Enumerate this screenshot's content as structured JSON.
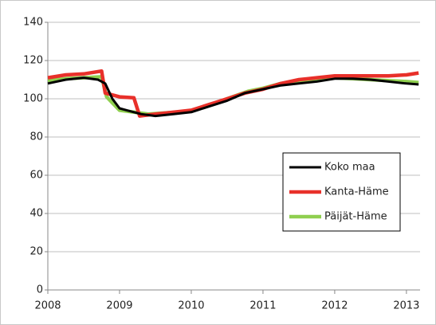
{
  "chart_data": {
    "type": "line",
    "xlim": [
      2008,
      2013.19
    ],
    "xticks": [
      2008,
      2009,
      2010,
      2011,
      2012,
      2013
    ],
    "ylim": [
      0,
      140
    ],
    "yticks": [
      0,
      20,
      40,
      60,
      80,
      100,
      120,
      140
    ],
    "grid": true,
    "legend": "right",
    "series": [
      {
        "name": "Koko maa",
        "color": "#000000",
        "x": [
          2008,
          2008.25,
          2008.5,
          2008.7,
          2008.8,
          2008.9,
          2009.0,
          2009.1,
          2009.3,
          2009.5,
          2009.75,
          2010,
          2010.25,
          2010.5,
          2010.75,
          2011,
          2011.25,
          2011.5,
          2011.75,
          2012,
          2012.25,
          2012.5,
          2012.75,
          2013,
          2013.17
        ],
        "values": [
          108,
          110,
          111,
          110,
          108,
          100,
          95,
          94,
          92,
          91,
          92,
          93,
          96,
          99,
          103,
          105,
          107,
          108,
          109,
          110.5,
          110.5,
          110,
          109,
          108,
          107.5
        ]
      },
      {
        "name": "Kanta-Häme",
        "color": "#e8302a",
        "x": [
          2008,
          2008.25,
          2008.5,
          2008.75,
          2008.8,
          2009,
          2009.2,
          2009.28,
          2009.5,
          2009.75,
          2010,
          2010.25,
          2010.5,
          2010.75,
          2011,
          2011.25,
          2011.5,
          2011.75,
          2012,
          2012.25,
          2012.5,
          2012.75,
          2013,
          2013.17
        ],
        "values": [
          111,
          112.5,
          113,
          114.5,
          103,
          101,
          100.5,
          91,
          92,
          93,
          94,
          97,
          100,
          103,
          105,
          108,
          110,
          111,
          112,
          112,
          112,
          112,
          112.5,
          113.5
        ]
      },
      {
        "name": "Päijät-Häme",
        "color": "#8fcf4f",
        "x": [
          2008,
          2008.25,
          2008.5,
          2008.75,
          2008.82,
          2009,
          2009.2,
          2009.4,
          2009.6,
          2010,
          2010.25,
          2010.5,
          2010.8,
          2011,
          2011.25,
          2011.5,
          2011.75,
          2012,
          2012.25,
          2012.5,
          2012.75,
          2013,
          2013.17
        ],
        "values": [
          109.5,
          110.5,
          111,
          111.5,
          101,
          94,
          93,
          92,
          92.5,
          93.5,
          96.5,
          100,
          104,
          105.5,
          108,
          109.5,
          110.5,
          111,
          110.5,
          110,
          109.5,
          109,
          108.5
        ]
      }
    ]
  }
}
